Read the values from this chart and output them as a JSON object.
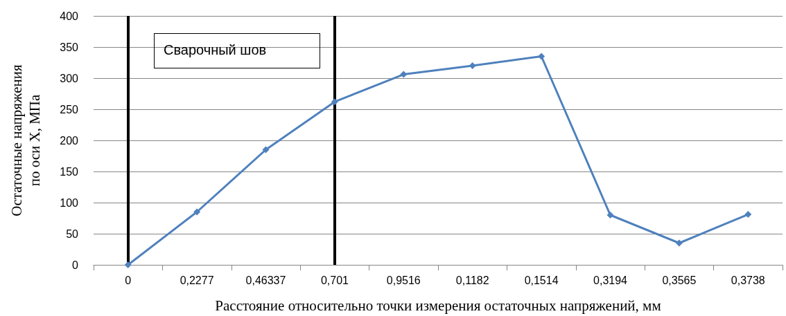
{
  "chart_data": {
    "type": "line",
    "xlabel": "Расстояние относительно точки измерения остаточных напряжений, мм",
    "ylabel": "Остаточные напряжения\nпо оси X, МПа",
    "categories": [
      "0",
      "0,2277",
      "0,46337",
      "0,701",
      "0,9516",
      "0,1182",
      "0,1514",
      "0,3194",
      "0,3565",
      "0,3738"
    ],
    "series": [
      {
        "color": "#4f81bd",
        "values": [
          0,
          85,
          185,
          262,
          306,
          320,
          335,
          80,
          35,
          81
        ]
      }
    ],
    "ylim": [
      0,
      400
    ],
    "yticks": [
      0,
      50,
      100,
      150,
      200,
      250,
      300,
      350,
      400
    ],
    "grid": "y",
    "marker": "diamond",
    "line_style": "solid",
    "ref_lines": [
      {
        "axis": "x",
        "value": "0",
        "color": "#000000"
      },
      {
        "axis": "x",
        "value": "0,701",
        "color": "#000000"
      }
    ],
    "annotations": [
      "Сварочный шов"
    ]
  }
}
